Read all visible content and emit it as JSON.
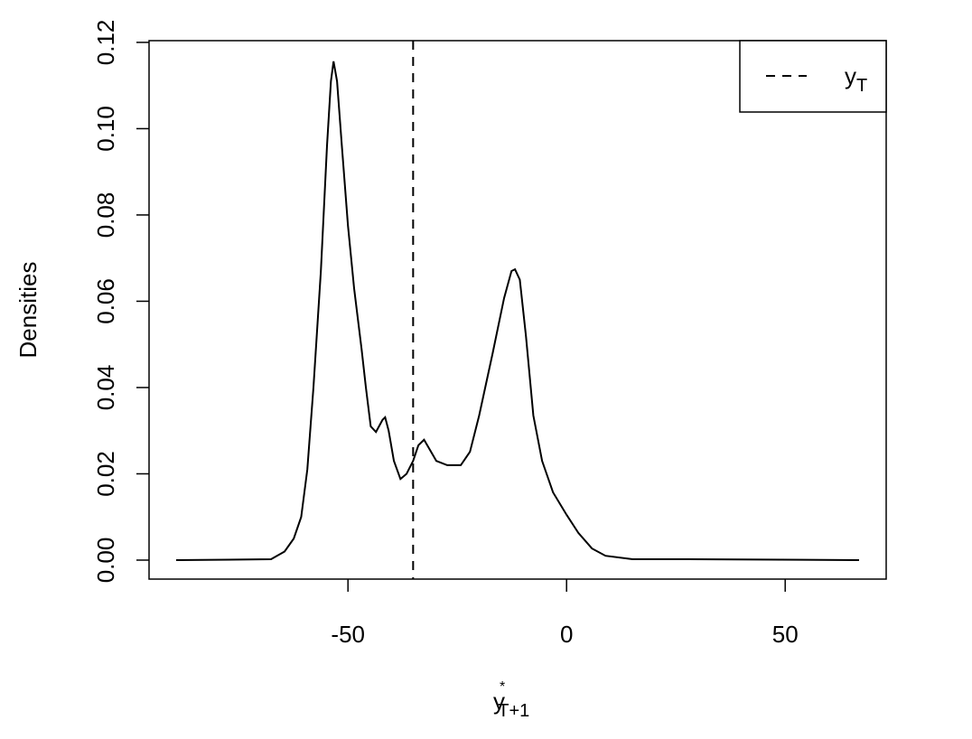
{
  "chart_data": {
    "type": "line",
    "y_label": "Densities",
    "x_label": {
      "base": "y",
      "sup": "*",
      "sub": "T+1"
    },
    "x": [
      -89.3,
      -67.6,
      -64.5,
      -62.4,
      -60.7,
      -59.3,
      -57.9,
      -56.2,
      -54.8,
      -53.9,
      -53.3,
      -52.5,
      -51.4,
      -50.0,
      -48.6,
      -46.9,
      -45.9,
      -44.8,
      -43.6,
      -42.1,
      -41.5,
      -40.7,
      -39.5,
      -38.0,
      -36.6,
      -35.1,
      -33.9,
      -32.6,
      -31.4,
      -29.8,
      -27.3,
      -24.2,
      -22.1,
      -20.0,
      -16.9,
      -14.3,
      -12.6,
      -11.8,
      -10.7,
      -9.3,
      -7.6,
      -5.6,
      -3.1,
      0,
      2.7,
      5.8,
      8.9,
      15.1,
      27.5,
      66.9
    ],
    "series": [
      {
        "color": "#000000",
        "values": [
          0,
          0.0002,
          0.002,
          0.005,
          0.01,
          0.021,
          0.04,
          0.067,
          0.096,
          0.111,
          0.1156,
          0.111,
          0.096,
          0.0775,
          0.063,
          0.049,
          0.04,
          0.031,
          0.0297,
          0.0325,
          0.0331,
          0.03,
          0.023,
          0.0188,
          0.02,
          0.023,
          0.0266,
          0.0279,
          0.0258,
          0.023,
          0.022,
          0.022,
          0.0251,
          0.0335,
          0.048,
          0.0607,
          0.067,
          0.0674,
          0.065,
          0.052,
          0.0335,
          0.023,
          0.0157,
          0.0105,
          0.0063,
          0.0027,
          0.001,
          0.0002,
          0.0002,
          0
        ]
      }
    ],
    "reference_line": {
      "x": -35.1,
      "color": "#000000",
      "style": "dashed",
      "label": {
        "base": "y",
        "sub": "T"
      }
    },
    "legend": "top-right",
    "xlim": [
      -95.5,
      73.1
    ],
    "ylim": [
      -0.0044,
      0.1204
    ],
    "xticks": [
      -50,
      0,
      50
    ],
    "yticks": [
      {
        "value": 0,
        "label": "0.00"
      },
      0.02,
      0.04,
      0.06,
      0.08,
      {
        "value": 0.1,
        "label": "0.10"
      },
      0.12
    ]
  }
}
